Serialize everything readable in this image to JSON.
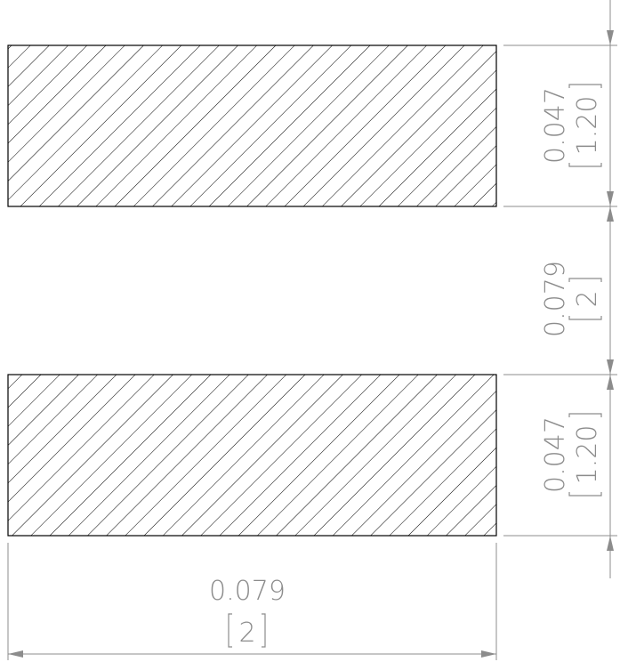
{
  "drawing": {
    "colors": {
      "outline": "#000000",
      "dimension": "#8c8c8c",
      "hatch": "#000000",
      "background": "#ffffff"
    },
    "pads": [
      {
        "label": "top-pad"
      },
      {
        "label": "bottom-pad"
      }
    ],
    "dimensions": {
      "top_pad_height": {
        "inch": "0.047",
        "mm": "1.20"
      },
      "pad_gap": {
        "inch": "0.079",
        "mm": "2"
      },
      "bottom_pad_height": {
        "inch": "0.047",
        "mm": "1.20"
      },
      "pad_width": {
        "inch": "0.079",
        "mm": "2"
      }
    }
  }
}
